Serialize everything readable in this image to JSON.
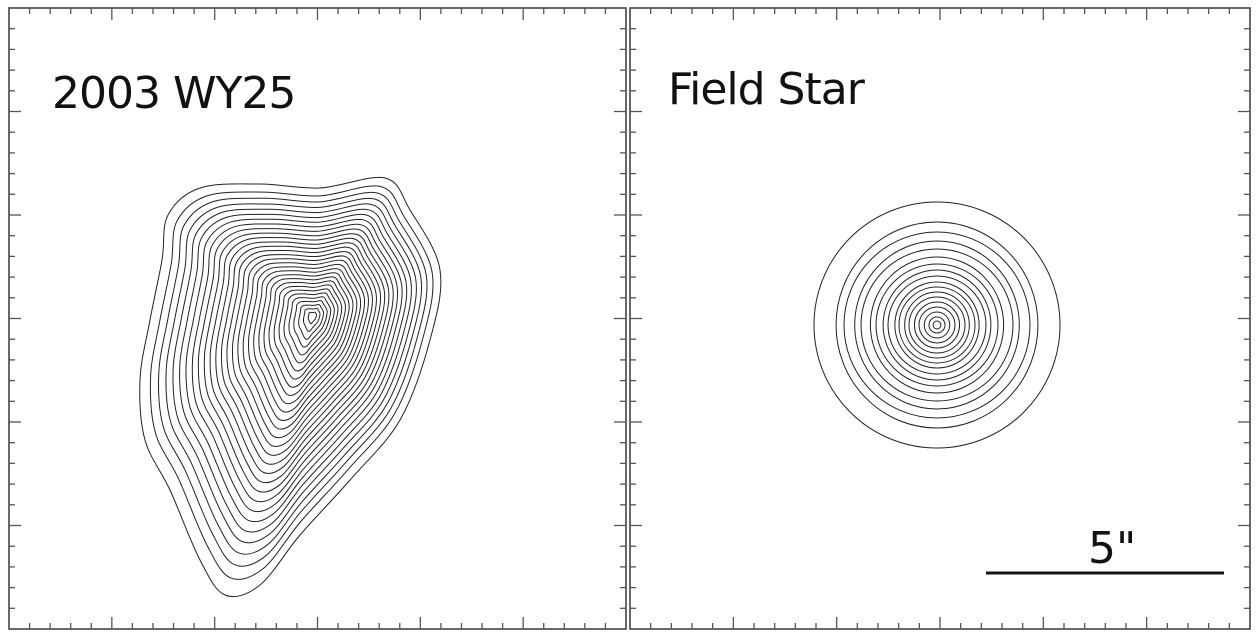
{
  "panels": [
    {
      "id": "left",
      "label": "2003 WY25"
    },
    {
      "id": "right",
      "label": "Field Star"
    }
  ],
  "scale_bar": {
    "label": "5\""
  },
  "colors": {
    "contour": "#222222",
    "frame": "#444444",
    "text": "#111111"
  }
}
